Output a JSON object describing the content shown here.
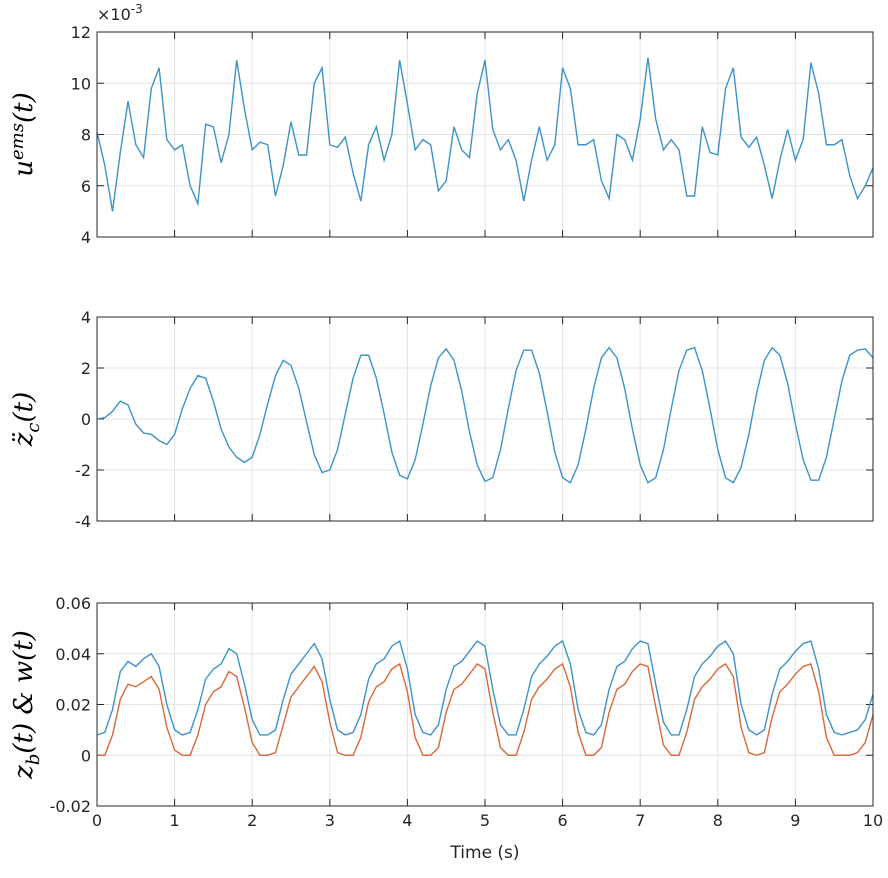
{
  "chart_data": [
    {
      "type": "line",
      "ylabel": [
        "u",
        "ems",
        "(t)"
      ],
      "ylabel_style": "superscript",
      "exponent_label": [
        "×10",
        "-3"
      ],
      "x": [
        0,
        0.1,
        0.2,
        0.3,
        0.4,
        0.5,
        0.6,
        0.7,
        0.8,
        0.9,
        1,
        1.1,
        1.2,
        1.3,
        1.4,
        1.5,
        1.6,
        1.7,
        1.8,
        1.9,
        2,
        2.1,
        2.2,
        2.3,
        2.4,
        2.5,
        2.6,
        2.7,
        2.8,
        2.9,
        3,
        3.1,
        3.2,
        3.3,
        3.4,
        3.5,
        3.6,
        3.7,
        3.8,
        3.9,
        4,
        4.1,
        4.2,
        4.3,
        4.4,
        4.5,
        4.6,
        4.7,
        4.8,
        4.9,
        5,
        5.1,
        5.2,
        5.3,
        5.4,
        5.5,
        5.6,
        5.7,
        5.8,
        5.9,
        6,
        6.1,
        6.2,
        6.3,
        6.4,
        6.5,
        6.6,
        6.7,
        6.8,
        6.9,
        7,
        7.1,
        7.2,
        7.3,
        7.4,
        7.5,
        7.6,
        7.7,
        7.8,
        7.9,
        8,
        8.1,
        8.2,
        8.3,
        8.4,
        8.5,
        8.6,
        8.7,
        8.8,
        8.9,
        9,
        9.1,
        9.2,
        9.3,
        9.4,
        9.5,
        9.6,
        9.7,
        9.8,
        9.9,
        10
      ],
      "series": [
        {
          "color": "#3d93c8",
          "values": [
            8.1,
            6.8,
            5.0,
            7.3,
            9.3,
            7.6,
            7.1,
            9.8,
            10.6,
            7.8,
            7.4,
            7.6,
            6.0,
            5.3,
            8.4,
            8.3,
            6.9,
            8.0,
            10.9,
            9.0,
            7.4,
            7.7,
            7.6,
            5.6,
            6.8,
            8.5,
            7.2,
            7.2,
            10.0,
            10.6,
            7.6,
            7.5,
            7.9,
            6.5,
            5.4,
            7.6,
            8.3,
            7.0,
            8.0,
            10.9,
            9.2,
            7.4,
            7.8,
            7.6,
            5.8,
            6.2,
            8.3,
            7.4,
            7.1,
            9.6,
            10.9,
            8.2,
            7.4,
            7.8,
            7.0,
            5.4,
            7.0,
            8.3,
            7.0,
            7.6,
            10.6,
            9.8,
            7.6,
            7.6,
            7.8,
            6.2,
            5.5,
            8.0,
            7.8,
            7.0,
            8.6,
            11.0,
            8.6,
            7.4,
            7.8,
            7.4,
            5.6,
            5.6,
            8.3,
            7.3,
            7.2,
            9.8,
            10.6,
            7.9,
            7.5,
            7.9,
            6.8,
            5.5,
            7.0,
            8.2,
            7.0,
            7.8,
            10.8,
            9.6,
            7.6,
            7.6,
            7.8,
            6.4,
            5.5,
            6.0,
            6.7
          ]
        }
      ],
      "xlim": [
        0,
        10
      ],
      "xticks": [
        0,
        1,
        2,
        3,
        4,
        5,
        6,
        7,
        8,
        9,
        10
      ],
      "show_xticklabels": false,
      "ylim": [
        4,
        12
      ],
      "yticks": [
        4,
        6,
        8,
        10,
        12
      ],
      "grid": true
    },
    {
      "type": "line",
      "ylabel": [
        "z̈",
        "c",
        "(t)"
      ],
      "ylabel_style": "subscript",
      "x": [
        0,
        0.1,
        0.2,
        0.3,
        0.4,
        0.5,
        0.6,
        0.7,
        0.8,
        0.9,
        1,
        1.1,
        1.2,
        1.3,
        1.4,
        1.5,
        1.6,
        1.7,
        1.8,
        1.9,
        2,
        2.1,
        2.2,
        2.3,
        2.4,
        2.5,
        2.6,
        2.7,
        2.8,
        2.9,
        3,
        3.1,
        3.2,
        3.3,
        3.4,
        3.5,
        3.6,
        3.7,
        3.8,
        3.9,
        4,
        4.1,
        4.2,
        4.3,
        4.4,
        4.5,
        4.6,
        4.7,
        4.8,
        4.9,
        5,
        5.1,
        5.2,
        5.3,
        5.4,
        5.5,
        5.6,
        5.7,
        5.8,
        5.9,
        6,
        6.1,
        6.2,
        6.3,
        6.4,
        6.5,
        6.6,
        6.7,
        6.8,
        6.9,
        7,
        7.1,
        7.2,
        7.3,
        7.4,
        7.5,
        7.6,
        7.7,
        7.8,
        7.9,
        8,
        8.1,
        8.2,
        8.3,
        8.4,
        8.5,
        8.6,
        8.7,
        8.8,
        8.9,
        9,
        9.1,
        9.2,
        9.3,
        9.4,
        9.5,
        9.6,
        9.7,
        9.8,
        9.9,
        10
      ],
      "series": [
        {
          "color": "#3d93c8",
          "values": [
            0,
            0.05,
            0.3,
            0.7,
            0.55,
            -0.2,
            -0.55,
            -0.6,
            -0.85,
            -1.0,
            -0.6,
            0.4,
            1.2,
            1.7,
            1.6,
            0.7,
            -0.4,
            -1.1,
            -1.5,
            -1.7,
            -1.5,
            -0.6,
            0.6,
            1.7,
            2.3,
            2.1,
            1.2,
            -0.1,
            -1.4,
            -2.1,
            -2.0,
            -1.2,
            0.2,
            1.6,
            2.5,
            2.5,
            1.6,
            0.2,
            -1.3,
            -2.2,
            -2.35,
            -1.6,
            -0.2,
            1.3,
            2.4,
            2.75,
            2.3,
            1.1,
            -0.5,
            -1.8,
            -2.45,
            -2.3,
            -1.2,
            0.4,
            1.9,
            2.7,
            2.7,
            1.8,
            0.3,
            -1.3,
            -2.3,
            -2.5,
            -1.8,
            -0.4,
            1.2,
            2.4,
            2.8,
            2.4,
            1.2,
            -0.4,
            -1.8,
            -2.5,
            -2.3,
            -1.2,
            0.4,
            1.9,
            2.7,
            2.8,
            1.9,
            0.4,
            -1.2,
            -2.3,
            -2.5,
            -1.9,
            -0.6,
            1.0,
            2.3,
            2.8,
            2.5,
            1.4,
            -0.2,
            -1.6,
            -2.4,
            -2.4,
            -1.5,
            0.0,
            1.5,
            2.5,
            2.7,
            2.75,
            2.4
          ]
        }
      ],
      "xlim": [
        0,
        10
      ],
      "xticks": [
        0,
        1,
        2,
        3,
        4,
        5,
        6,
        7,
        8,
        9,
        10
      ],
      "show_xticklabels": false,
      "ylim": [
        -4,
        4
      ],
      "yticks": [
        -4,
        -2,
        0,
        2,
        4
      ],
      "grid": true
    },
    {
      "type": "line",
      "ylabel": [
        "z",
        "b",
        "(t) & w(t)"
      ],
      "ylabel_style": "subscript",
      "xlabel": "Time (s)",
      "x": [
        0,
        0.1,
        0.2,
        0.3,
        0.4,
        0.5,
        0.6,
        0.7,
        0.8,
        0.9,
        1,
        1.1,
        1.2,
        1.3,
        1.4,
        1.5,
        1.6,
        1.7,
        1.8,
        1.9,
        2,
        2.1,
        2.2,
        2.3,
        2.4,
        2.5,
        2.6,
        2.7,
        2.8,
        2.9,
        3,
        3.1,
        3.2,
        3.3,
        3.4,
        3.5,
        3.6,
        3.7,
        3.8,
        3.9,
        4,
        4.1,
        4.2,
        4.3,
        4.4,
        4.5,
        4.6,
        4.7,
        4.8,
        4.9,
        5,
        5.1,
        5.2,
        5.3,
        5.4,
        5.5,
        5.6,
        5.7,
        5.8,
        5.9,
        6,
        6.1,
        6.2,
        6.3,
        6.4,
        6.5,
        6.6,
        6.7,
        6.8,
        6.9,
        7,
        7.1,
        7.2,
        7.3,
        7.4,
        7.5,
        7.6,
        7.7,
        7.8,
        7.9,
        8,
        8.1,
        8.2,
        8.3,
        8.4,
        8.5,
        8.6,
        8.7,
        8.8,
        8.9,
        9,
        9.1,
        9.2,
        9.3,
        9.4,
        9.5,
        9.6,
        9.7,
        9.8,
        9.9,
        10
      ],
      "series": [
        {
          "color": "#3d93c8",
          "values": [
            0.008,
            0.009,
            0.018,
            0.033,
            0.037,
            0.035,
            0.038,
            0.04,
            0.035,
            0.02,
            0.01,
            0.008,
            0.009,
            0.018,
            0.03,
            0.034,
            0.036,
            0.042,
            0.04,
            0.028,
            0.014,
            0.008,
            0.008,
            0.01,
            0.022,
            0.032,
            0.036,
            0.04,
            0.044,
            0.038,
            0.022,
            0.01,
            0.008,
            0.009,
            0.016,
            0.03,
            0.036,
            0.038,
            0.043,
            0.045,
            0.034,
            0.016,
            0.009,
            0.008,
            0.012,
            0.026,
            0.035,
            0.037,
            0.041,
            0.045,
            0.043,
            0.026,
            0.012,
            0.008,
            0.008,
            0.018,
            0.031,
            0.036,
            0.039,
            0.043,
            0.045,
            0.036,
            0.018,
            0.009,
            0.008,
            0.012,
            0.026,
            0.035,
            0.037,
            0.042,
            0.045,
            0.044,
            0.028,
            0.013,
            0.008,
            0.008,
            0.018,
            0.031,
            0.036,
            0.039,
            0.043,
            0.045,
            0.04,
            0.02,
            0.01,
            0.008,
            0.01,
            0.024,
            0.034,
            0.037,
            0.041,
            0.044,
            0.045,
            0.034,
            0.016,
            0.009,
            0.008,
            0.009,
            0.01,
            0.014,
            0.024
          ]
        },
        {
          "color": "#d9693b",
          "values": [
            0,
            0,
            0.008,
            0.022,
            0.028,
            0.027,
            0.029,
            0.031,
            0.026,
            0.011,
            0.002,
            0,
            0,
            0.008,
            0.02,
            0.025,
            0.027,
            0.033,
            0.031,
            0.019,
            0.005,
            0,
            0,
            0.001,
            0.012,
            0.023,
            0.027,
            0.031,
            0.035,
            0.029,
            0.013,
            0.001,
            0,
            0,
            0.007,
            0.021,
            0.027,
            0.029,
            0.034,
            0.036,
            0.025,
            0.007,
            0,
            0,
            0.003,
            0.017,
            0.026,
            0.028,
            0.032,
            0.036,
            0.034,
            0.017,
            0.003,
            0,
            0,
            0.009,
            0.022,
            0.027,
            0.03,
            0.034,
            0.036,
            0.027,
            0.009,
            0,
            0,
            0.003,
            0.017,
            0.026,
            0.028,
            0.033,
            0.036,
            0.035,
            0.019,
            0.004,
            0,
            0,
            0.009,
            0.022,
            0.027,
            0.03,
            0.034,
            0.036,
            0.031,
            0.011,
            0.001,
            0,
            0.001,
            0.015,
            0.025,
            0.028,
            0.032,
            0.035,
            0.036,
            0.025,
            0.007,
            0,
            0,
            0,
            0.001,
            0.005,
            0.016
          ]
        }
      ],
      "xlim": [
        0,
        10
      ],
      "xticks": [
        0,
        1,
        2,
        3,
        4,
        5,
        6,
        7,
        8,
        9,
        10
      ],
      "show_xticklabels": true,
      "ylim": [
        -0.02,
        0.06
      ],
      "yticks": [
        -0.02,
        0,
        0.02,
        0.04,
        0.06
      ],
      "grid": true
    }
  ]
}
